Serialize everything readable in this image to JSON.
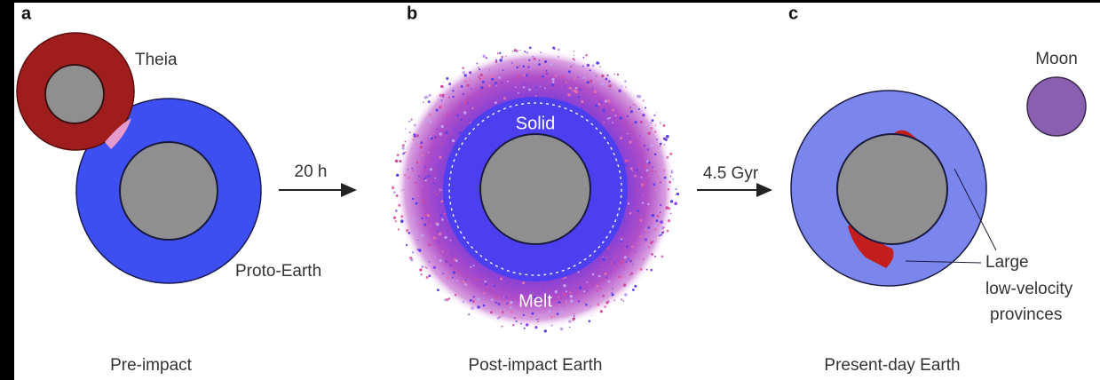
{
  "panels": [
    {
      "letter": "a",
      "labels": [
        "Theia",
        "Proto-Earth"
      ],
      "caption": "Pre-impact"
    },
    {
      "letter": "b",
      "labels": [
        "Solid",
        "Melt"
      ],
      "caption": "Post-impact Earth"
    },
    {
      "letter": "c",
      "labels": [
        "Moon",
        "Large",
        "low-velocity",
        "provinces"
      ],
      "caption": "Present-day Earth"
    }
  ],
  "arrows": [
    "20 h",
    "4.5 Gyr"
  ]
}
